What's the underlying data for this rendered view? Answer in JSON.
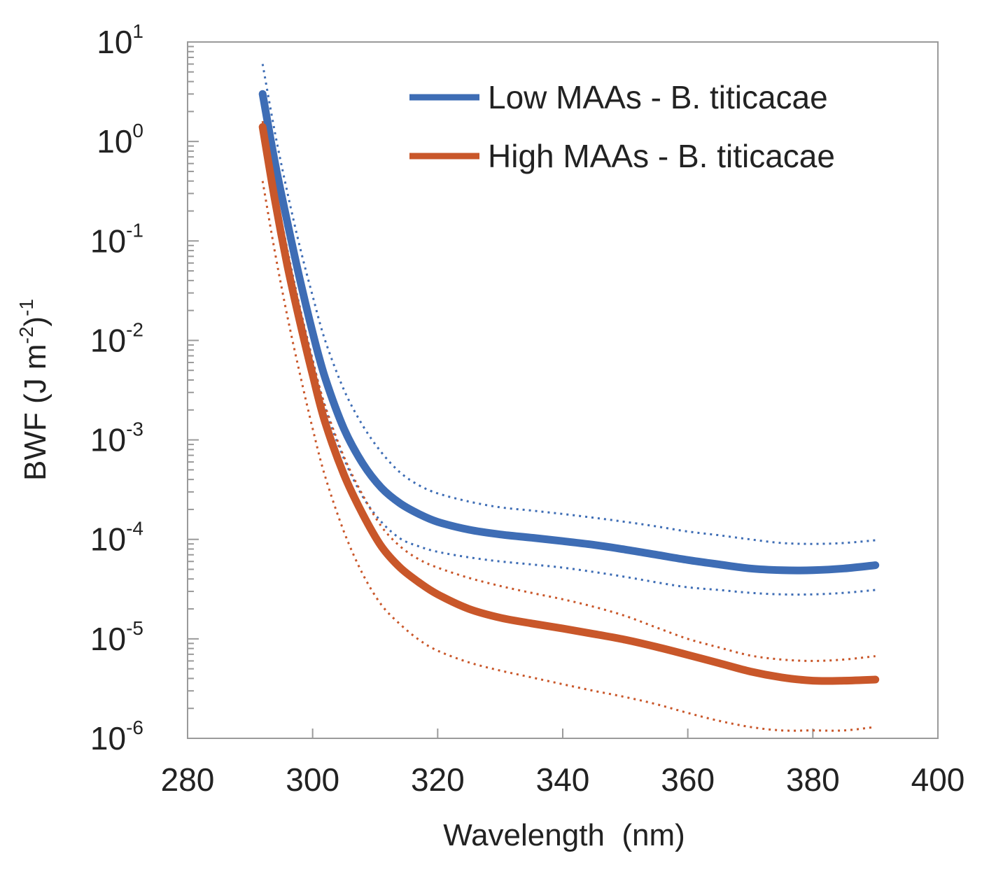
{
  "chart_data": {
    "type": "line",
    "title": "",
    "xlabel": "Wavelength  (nm)",
    "ylabel": "BWF (J m",
    "ylabel_sup1": "-2",
    "ylabel_mid": ")",
    "ylabel_sup2": "-1",
    "xlim": [
      280,
      400
    ],
    "ylim": [
      1e-06,
      10
    ],
    "yscale": "log",
    "x_ticks": [
      280,
      300,
      320,
      340,
      360,
      380,
      400
    ],
    "x_tick_labels": [
      "280",
      "300",
      "320",
      "340",
      "360",
      "380",
      "400"
    ],
    "y_ticks": [
      {
        "value": 10,
        "base": "10",
        "exp": "1"
      },
      {
        "value": 1,
        "base": "10",
        "exp": "0"
      },
      {
        "value": 0.1,
        "base": "10",
        "exp": "-1"
      },
      {
        "value": 0.01,
        "base": "10",
        "exp": "-2"
      },
      {
        "value": 0.001,
        "base": "10",
        "exp": "-3"
      },
      {
        "value": 0.0001,
        "base": "10",
        "exp": "-4"
      },
      {
        "value": 1e-05,
        "base": "10",
        "exp": "-5"
      },
      {
        "value": 1e-06,
        "base": "10",
        "exp": "-6"
      }
    ],
    "legend_position": "top-right",
    "series": [
      {
        "name": "Low MAAs - B. titicacae",
        "color": "#3e6db5",
        "style": "solid",
        "in_legend": true,
        "x": [
          292,
          294,
          296,
          298,
          300,
          302,
          305,
          308,
          311,
          314,
          317,
          320,
          325,
          330,
          335,
          340,
          345,
          350,
          355,
          360,
          365,
          370,
          375,
          380,
          385,
          390
        ],
        "values": [
          3.0,
          0.6,
          0.15,
          0.04,
          0.012,
          0.0042,
          0.0013,
          0.00058,
          0.00033,
          0.00023,
          0.00018,
          0.00015,
          0.000125,
          0.000112,
          0.000104,
          9.6e-05,
          8.8e-05,
          7.9e-05,
          7e-05,
          6.2e-05,
          5.6e-05,
          5.1e-05,
          4.9e-05,
          4.9e-05,
          5.1e-05,
          5.5e-05
        ]
      },
      {
        "name": "High MAAs - B. titicacae",
        "color": "#c9572a",
        "style": "solid",
        "in_legend": true,
        "x": [
          292,
          294,
          296,
          298,
          300,
          302,
          305,
          308,
          311,
          314,
          317,
          320,
          325,
          330,
          335,
          340,
          345,
          350,
          355,
          360,
          365,
          370,
          375,
          380,
          385,
          390
        ],
        "values": [
          1.4,
          0.25,
          0.055,
          0.015,
          0.0045,
          0.0015,
          0.00045,
          0.00018,
          8.5e-05,
          5.2e-05,
          3.7e-05,
          2.8e-05,
          2e-05,
          1.63e-05,
          1.43e-05,
          1.27e-05,
          1.12e-05,
          9.8e-06,
          8.3e-06,
          6.9e-06,
          5.7e-06,
          4.7e-06,
          4.1e-06,
          3.8e-06,
          3.8e-06,
          3.9e-06
        ]
      },
      {
        "name": "Low MAAs upper bound",
        "color": "#3e6db5",
        "style": "dotted",
        "in_legend": false,
        "x": [
          292,
          294,
          296,
          298,
          300,
          302,
          305,
          308,
          311,
          314,
          317,
          320,
          325,
          330,
          335,
          340,
          345,
          350,
          355,
          360,
          365,
          370,
          375,
          380,
          385,
          390
        ],
        "values": [
          6.0,
          1.2,
          0.3,
          0.085,
          0.028,
          0.01,
          0.0032,
          0.0014,
          0.00075,
          0.00047,
          0.00035,
          0.00029,
          0.00024,
          0.00021,
          0.000195,
          0.00018,
          0.000165,
          0.00015,
          0.000135,
          0.00012,
          0.00011,
          0.0001,
          9.2e-05,
          9e-05,
          9.2e-05,
          9.8e-05
        ]
      },
      {
        "name": "Low MAAs lower bound",
        "color": "#3e6db5",
        "style": "dotted",
        "in_legend": false,
        "x": [
          292,
          294,
          296,
          298,
          300,
          302,
          305,
          308,
          311,
          314,
          317,
          320,
          325,
          330,
          335,
          340,
          345,
          350,
          355,
          360,
          365,
          370,
          375,
          380,
          385,
          390
        ],
        "values": [
          2.2,
          0.35,
          0.08,
          0.021,
          0.0064,
          0.0021,
          0.00065,
          0.00027,
          0.00015,
          0.000102,
          8.5e-05,
          7.5e-05,
          6.6e-05,
          6e-05,
          5.6e-05,
          5.2e-05,
          4.7e-05,
          4.2e-05,
          3.7e-05,
          3.3e-05,
          3.1e-05,
          2.9e-05,
          2.8e-05,
          2.8e-05,
          2.9e-05,
          3.1e-05
        ]
      },
      {
        "name": "High MAAs upper bound",
        "color": "#c9572a",
        "style": "dotted",
        "in_legend": false,
        "x": [
          292,
          294,
          296,
          298,
          300,
          302,
          305,
          308,
          311,
          314,
          317,
          320,
          325,
          330,
          335,
          340,
          345,
          350,
          355,
          360,
          365,
          370,
          375,
          380,
          385,
          390
        ],
        "values": [
          1.6,
          0.3,
          0.07,
          0.02,
          0.0062,
          0.0022,
          0.00068,
          0.00028,
          0.000135,
          8.5e-05,
          6.3e-05,
          5.2e-05,
          4.1e-05,
          3.4e-05,
          2.9e-05,
          2.5e-05,
          2.1e-05,
          1.7e-05,
          1.3e-05,
          1e-05,
          8.2e-06,
          6.8e-06,
          6.2e-06,
          6e-06,
          6.2e-06,
          6.7e-06
        ]
      },
      {
        "name": "High MAAs lower bound",
        "color": "#c9572a",
        "style": "dotted",
        "in_legend": false,
        "x": [
          292,
          294,
          296,
          298,
          300,
          302,
          305,
          308,
          311,
          314,
          317,
          320,
          325,
          330,
          335,
          340,
          345,
          350,
          355,
          360,
          365,
          370,
          375,
          380,
          385,
          390
        ],
        "values": [
          0.4,
          0.075,
          0.017,
          0.0045,
          0.0013,
          0.00043,
          0.00012,
          4.5e-05,
          2.2e-05,
          1.4e-05,
          9.8e-06,
          7.6e-06,
          5.8e-06,
          4.8e-06,
          4.1e-06,
          3.5e-06,
          3e-06,
          2.6e-06,
          2.2e-06,
          1.8e-06,
          1.5e-06,
          1.3e-06,
          1.2e-06,
          1.2e-06,
          1.2e-06,
          1.3e-06
        ]
      }
    ]
  }
}
